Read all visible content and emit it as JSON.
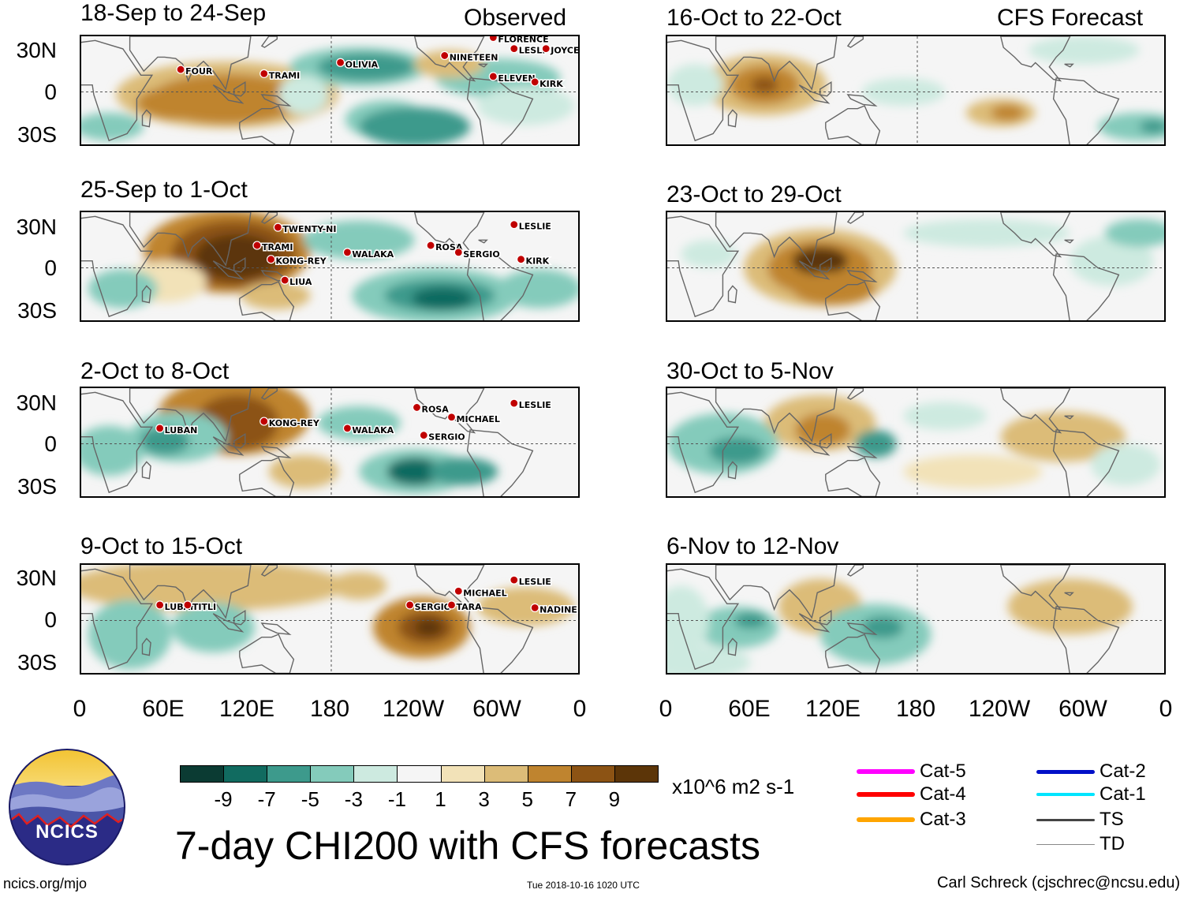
{
  "observed_label": "Observed",
  "forecast_label": "CFS Forecast",
  "panels": [
    {
      "title": "18-Sep to 24-Sep",
      "storms": [
        "FOUR",
        "TRAMI",
        "OLIVIA",
        "NINETEEN",
        "FLORENCE",
        "LESLI",
        "JOYCE",
        "ELEVEN",
        "KIRK"
      ]
    },
    {
      "title": "25-Sep to 1-Oct",
      "storms": [
        "TWENTY-NI",
        "TRAMI",
        "KONG-REY",
        "LIUA",
        "WALAKA",
        "ROSA",
        "SERGIO",
        "LESLIE",
        "KIRK"
      ]
    },
    {
      "title": "2-Oct to 8-Oct",
      "storms": [
        "LUBAN",
        "KONG-REY",
        "WALAKA",
        "ROSA",
        "MICHAEL",
        "SERGIO",
        "LESLIE"
      ]
    },
    {
      "title": "9-Oct to 15-Oct",
      "storms": [
        "LUBAN",
        "TITLI",
        "SERGIO",
        "TARA",
        "MICHAEL",
        "LESLIE",
        "NADINE"
      ]
    },
    {
      "title": "16-Oct to 22-Oct",
      "storms": []
    },
    {
      "title": "23-Oct to 29-Oct",
      "storms": []
    },
    {
      "title": "30-Oct to 5-Nov",
      "storms": []
    },
    {
      "title": "6-Nov to 12-Nov",
      "storms": []
    }
  ],
  "y_axis_labels": [
    "30N",
    "0",
    "30S"
  ],
  "x_axis_labels": [
    "0",
    "60E",
    "120E",
    "180",
    "120W",
    "60W",
    "0"
  ],
  "colorbar": {
    "colors": [
      "#0b3b33",
      "#116b60",
      "#3d9a8c",
      "#84cbbb",
      "#cdeae0",
      "#f5f5f5",
      "#f2e2b8",
      "#dcbc78",
      "#bf842f",
      "#8c5314",
      "#5c3508"
    ],
    "tick_labels": [
      "-9",
      "-7",
      "-5",
      "-3",
      "-1",
      "1",
      "3",
      "5",
      "7",
      "9"
    ],
    "units": "x10^6 m2 s-1"
  },
  "legend": [
    {
      "label": "Cat-5",
      "color": "#ff00ff"
    },
    {
      "label": "Cat-4",
      "color": "#ff0000"
    },
    {
      "label": "Cat-3",
      "color": "#ffa500"
    },
    {
      "label": "Cat-2",
      "color": "#0010c8"
    },
    {
      "label": "Cat-1",
      "color": "#00e5ff"
    },
    {
      "label": "TS",
      "color": "#444444"
    },
    {
      "label": "TD",
      "color": "#888888"
    }
  ],
  "main_title": "7-day CHI200 with CFS forecasts",
  "logo_text": "NCICS",
  "url": "ncics.org/mjo",
  "timestamp": "Tue 2018-10-16 1020 UTC",
  "credit": "Carl Schreck (cjschrec@ncsu.edu)"
}
